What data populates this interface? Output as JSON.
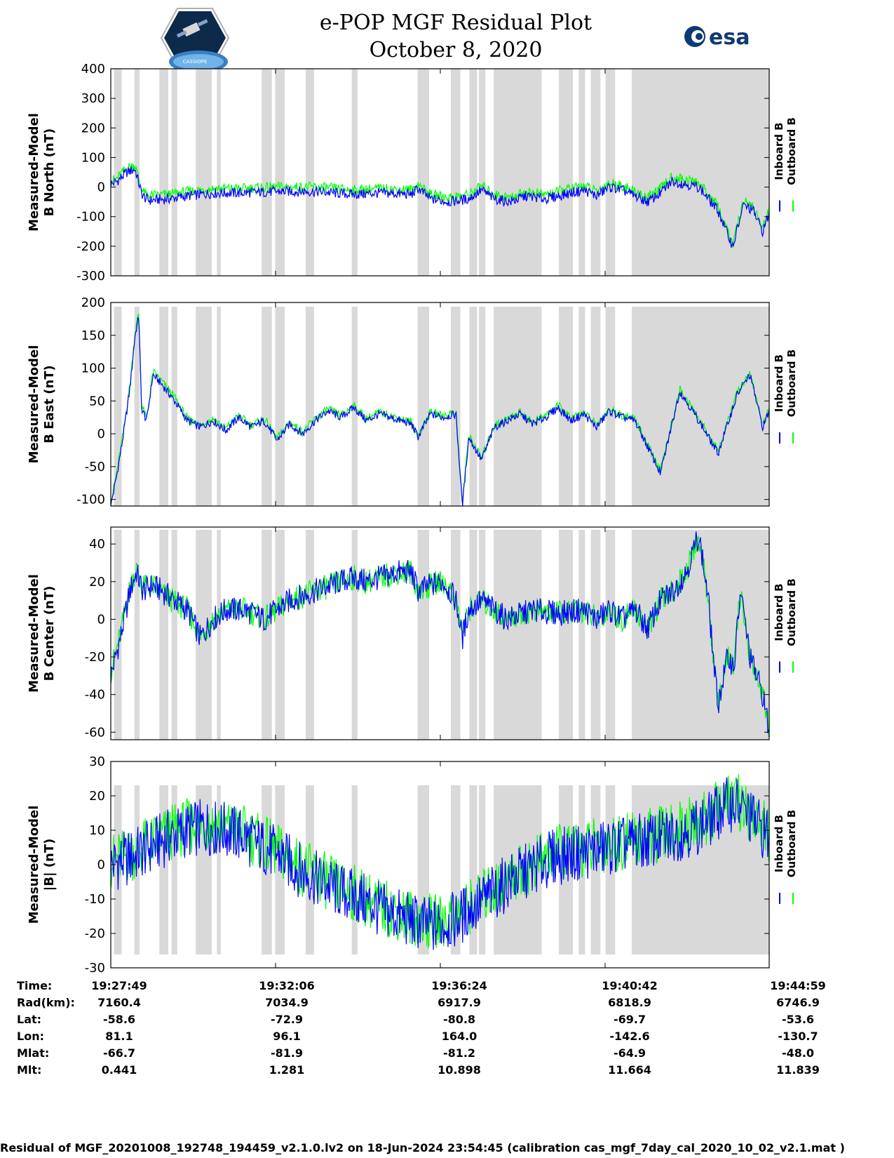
{
  "header": {
    "title_line1": "e-POP MGF Residual Plot",
    "title_line2": "October 8, 2020",
    "left_logo_text": "CASSIOPE",
    "right_logo_text": "esa"
  },
  "colors": {
    "inboard": "#0000ff",
    "outboard": "#00ff00",
    "gap_shade": "#d9d9d9"
  },
  "chart_data": [
    {
      "type": "line",
      "ylabel_line1": "Measured-Model",
      "ylabel_line2": "B North (nT)",
      "ylim": [
        -300,
        400
      ],
      "yticks": [
        "400",
        "300",
        "200",
        "100",
        "0",
        "-100",
        "-200",
        "-300"
      ],
      "legend": [
        "Inboard B",
        "Outboard B"
      ],
      "xlim_seconds": [
        0,
        1030
      ],
      "series": [
        {
          "name": "Inboard B",
          "x": [
            0,
            10,
            25,
            38,
            48,
            52,
            60,
            90,
            120,
            160,
            200,
            260,
            320,
            380,
            420,
            470,
            481,
            500,
            530,
            560,
            580,
            600,
            625,
            650,
            680,
            720,
            740,
            760,
            780,
            800,
            820,
            840,
            860,
            878,
            900,
            920,
            950,
            973,
            990,
            1005,
            1020,
            1030
          ],
          "y": [
            10,
            20,
            50,
            60,
            -20,
            -35,
            -45,
            -40,
            -30,
            -20,
            -20,
            -15,
            -15,
            -25,
            -20,
            -25,
            -5,
            -40,
            -50,
            -40,
            -10,
            -40,
            -50,
            -30,
            -40,
            -20,
            -10,
            -30,
            0,
            -10,
            -30,
            -50,
            -20,
            20,
            10,
            0,
            -80,
            -200,
            -60,
            -80,
            -150,
            -90
          ]
        },
        {
          "name": "Outboard B",
          "x": [
            0,
            10,
            25,
            38,
            48,
            52,
            60,
            90,
            120,
            160,
            200,
            260,
            320,
            380,
            420,
            470,
            481,
            500,
            530,
            560,
            580,
            600,
            625,
            650,
            680,
            720,
            740,
            760,
            780,
            800,
            820,
            840,
            860,
            878,
            900,
            920,
            950,
            973,
            990,
            1005,
            1020,
            1030
          ],
          "y": [
            20,
            30,
            65,
            75,
            -5,
            -20,
            -28,
            -25,
            -15,
            -5,
            -5,
            0,
            0,
            -10,
            -5,
            -10,
            10,
            -25,
            -35,
            -25,
            5,
            -25,
            -35,
            -15,
            -25,
            -5,
            5,
            -15,
            15,
            5,
            -15,
            -35,
            -5,
            35,
            25,
            15,
            -65,
            -195,
            -45,
            -65,
            -140,
            -75
          ]
        }
      ]
    },
    {
      "type": "line",
      "ylabel_line1": "Measured-Model",
      "ylabel_line2": "B East (nT)",
      "ylim": [
        -110,
        200
      ],
      "yticks": [
        "200",
        "150",
        "100",
        "50",
        "0",
        "-50",
        "-100"
      ],
      "legend": [
        "Inboard B",
        "Outboard B"
      ],
      "xlim_seconds": [
        0,
        1030
      ],
      "series": [
        {
          "name": "Inboard B",
          "x": [
            0,
            10,
            20,
            30,
            38,
            44,
            48,
            56,
            66,
            80,
            100,
            120,
            140,
            160,
            180,
            200,
            220,
            240,
            260,
            280,
            300,
            320,
            340,
            360,
            380,
            400,
            420,
            470,
            481,
            500,
            520,
            540,
            550,
            560,
            580,
            600,
            620,
            640,
            660,
            680,
            700,
            720,
            740,
            760,
            780,
            800,
            820,
            860,
            890,
            920,
            950,
            980,
            1000,
            1020,
            1030
          ],
          "y": [
            -110,
            -60,
            0,
            70,
            150,
            180,
            40,
            20,
            90,
            75,
            50,
            20,
            10,
            20,
            5,
            25,
            10,
            20,
            -10,
            15,
            0,
            20,
            35,
            25,
            40,
            20,
            30,
            15,
            -5,
            30,
            25,
            30,
            -110,
            -5,
            -40,
            10,
            20,
            30,
            15,
            25,
            40,
            20,
            30,
            10,
            35,
            25,
            20,
            -60,
            65,
            20,
            -30,
            60,
            90,
            10,
            35
          ]
        },
        {
          "name": "Outboard B",
          "x": [
            0,
            10,
            20,
            30,
            38,
            44,
            48,
            56,
            66,
            80,
            100,
            120,
            140,
            160,
            180,
            200,
            220,
            240,
            260,
            280,
            300,
            320,
            340,
            360,
            380,
            400,
            420,
            470,
            481,
            500,
            520,
            540,
            550,
            560,
            580,
            600,
            620,
            640,
            660,
            680,
            700,
            720,
            740,
            760,
            780,
            800,
            820,
            860,
            890,
            920,
            950,
            980,
            1000,
            1020,
            1030
          ],
          "y": [
            -105,
            -55,
            5,
            75,
            155,
            185,
            45,
            22,
            95,
            80,
            55,
            23,
            13,
            23,
            8,
            28,
            13,
            23,
            -7,
            18,
            3,
            23,
            38,
            28,
            43,
            23,
            33,
            18,
            -2,
            33,
            28,
            33,
            -105,
            -2,
            -37,
            13,
            23,
            33,
            18,
            28,
            43,
            23,
            33,
            13,
            38,
            28,
            23,
            -57,
            68,
            23,
            -27,
            63,
            93,
            13,
            38
          ]
        }
      ]
    },
    {
      "type": "line",
      "ylabel_line1": "Measured-Model",
      "ylabel_line2": "B Center (nT)",
      "ylim": [
        -64,
        49
      ],
      "yticks": [
        "40",
        "20",
        "0",
        "-20",
        "-40",
        "-60"
      ],
      "legend": [
        "Inboard B",
        "Outboard B"
      ],
      "xlim_seconds": [
        0,
        1030
      ],
      "series": [
        {
          "name": "Inboard B",
          "x": [
            0,
            15,
            30,
            40,
            50,
            65,
            80,
            100,
            120,
            140,
            160,
            180,
            210,
            240,
            260,
            280,
            320,
            360,
            380,
            400,
            420,
            450,
            470,
            481,
            500,
            520,
            540,
            550,
            560,
            580,
            600,
            620,
            660,
            700,
            740,
            760,
            780,
            800,
            820,
            840,
            860,
            880,
            900,
            920,
            935,
            945,
            950,
            965,
            975,
            985,
            1000,
            1020,
            1030
          ],
          "y": [
            -30,
            -10,
            15,
            25,
            15,
            18,
            15,
            10,
            5,
            -10,
            0,
            5,
            5,
            0,
            5,
            10,
            15,
            20,
            22,
            20,
            22,
            25,
            25,
            15,
            18,
            20,
            10,
            -10,
            5,
            10,
            5,
            0,
            5,
            3,
            5,
            0,
            5,
            0,
            5,
            -5,
            10,
            15,
            25,
            45,
            10,
            -30,
            -45,
            -20,
            -25,
            15,
            -20,
            -40,
            -60
          ]
        },
        {
          "name": "Outboard B",
          "x": [
            0,
            15,
            30,
            40,
            50,
            65,
            80,
            100,
            120,
            140,
            160,
            180,
            210,
            240,
            260,
            280,
            320,
            360,
            380,
            400,
            420,
            450,
            470,
            481,
            500,
            520,
            540,
            550,
            560,
            580,
            600,
            620,
            660,
            700,
            740,
            760,
            780,
            800,
            820,
            840,
            860,
            880,
            900,
            920,
            935,
            945,
            950,
            965,
            975,
            985,
            1000,
            1020,
            1030
          ],
          "y": [
            -28,
            -8,
            17,
            27,
            17,
            18,
            14,
            9,
            5,
            -9,
            0,
            5,
            5,
            0,
            5,
            10,
            15,
            20,
            22,
            20,
            22,
            25,
            25,
            15,
            18,
            20,
            10,
            -8,
            5,
            10,
            5,
            0,
            5,
            3,
            5,
            0,
            5,
            0,
            5,
            -5,
            10,
            15,
            25,
            44,
            10,
            -30,
            -44,
            -20,
            -25,
            15,
            -20,
            -40,
            -58
          ]
        }
      ]
    },
    {
      "type": "line",
      "ylabel_line1": "Measured-Model",
      "ylabel_line2": "|B| (nT)",
      "ylim": [
        -30,
        30
      ],
      "yticks": [
        "30",
        "20",
        "10",
        "0",
        "-10",
        "-20",
        "-30"
      ],
      "legend": [
        "Inboard B",
        "Outboard B"
      ],
      "xlim_seconds": [
        0,
        1030
      ],
      "series": [
        {
          "name": "Inboard B",
          "x": [
            0,
            30,
            60,
            90,
            120,
            150,
            180,
            210,
            240,
            270,
            300,
            330,
            360,
            390,
            420,
            450,
            481,
            510,
            540,
            570,
            600,
            630,
            660,
            690,
            720,
            750,
            780,
            810,
            840,
            870,
            900,
            930,
            960,
            975,
            1000,
            1020,
            1030
          ],
          "y": [
            0,
            2,
            5,
            8,
            10,
            11,
            10,
            8,
            5,
            2,
            -2,
            -5,
            -8,
            -10,
            -13,
            -15,
            -17,
            -18,
            -16,
            -12,
            -8,
            -4,
            -1,
            2,
            3,
            4,
            5,
            6,
            7,
            8,
            10,
            12,
            17,
            18,
            14,
            10,
            8
          ]
        },
        {
          "name": "Outboard B",
          "x": [
            0,
            30,
            60,
            90,
            120,
            150,
            180,
            210,
            240,
            270,
            300,
            330,
            360,
            390,
            420,
            450,
            481,
            510,
            540,
            570,
            600,
            630,
            660,
            690,
            720,
            750,
            780,
            810,
            840,
            870,
            900,
            930,
            960,
            975,
            1000,
            1020,
            1030
          ],
          "y": [
            1,
            3,
            6,
            9,
            11,
            12,
            11,
            9,
            6,
            3,
            -1,
            -4,
            -7,
            -9,
            -12,
            -14,
            -16,
            -17,
            -15,
            -11,
            -7,
            -3,
            0,
            3,
            4,
            5,
            6,
            7,
            8,
            9,
            11,
            13,
            18,
            19,
            15,
            11,
            9
          ]
        }
      ]
    }
  ],
  "gap_intervals_seconds": [
    [
      5,
      17
    ],
    [
      37,
      45
    ],
    [
      76,
      90
    ],
    [
      95,
      104
    ],
    [
      133,
      158
    ],
    [
      166,
      172
    ],
    [
      236,
      252
    ],
    [
      257,
      272
    ],
    [
      305,
      318
    ],
    [
      377,
      386
    ],
    [
      480,
      498
    ],
    [
      532,
      547
    ],
    [
      561,
      573
    ],
    [
      576,
      586
    ],
    [
      599,
      674
    ],
    [
      701,
      723
    ],
    [
      732,
      742
    ],
    [
      751,
      766
    ],
    [
      774,
      789
    ],
    [
      815,
      1030
    ]
  ],
  "ephemeris": {
    "labels": [
      "Time:",
      "Rad(km):",
      "Lat:",
      "Lon:",
      "Mlat:",
      "Mlt:"
    ],
    "columns": [
      {
        "time": "19:27:49",
        "rad": "7160.4",
        "lat": "-58.6",
        "lon": "81.1",
        "mlat": "-66.7",
        "mlt": "0.441"
      },
      {
        "time": "19:32:06",
        "rad": "7034.9",
        "lat": "-72.9",
        "lon": "96.1",
        "mlat": "-81.9",
        "mlt": "1.281"
      },
      {
        "time": "19:36:24",
        "rad": "6917.9",
        "lat": "-80.8",
        "lon": "164.0",
        "mlat": "-81.2",
        "mlt": "10.898"
      },
      {
        "time": "19:40:42",
        "rad": "6818.9",
        "lat": "-69.7",
        "lon": "-142.6",
        "mlat": "-64.9",
        "mlt": "11.664"
      },
      {
        "time": "19:44:59",
        "rad": "6746.9",
        "lat": "-53.6",
        "lon": "-130.7",
        "mlat": "-48.0",
        "mlt": "11.839"
      }
    ]
  },
  "footer": {
    "text": "Residual of MGF_20201008_192748_194459_v2.1.0.lv2 on 18-Jun-2024 23:54:45 (calibration cas_mgf_7day_cal_2020_10_02_v2.1.mat )"
  }
}
